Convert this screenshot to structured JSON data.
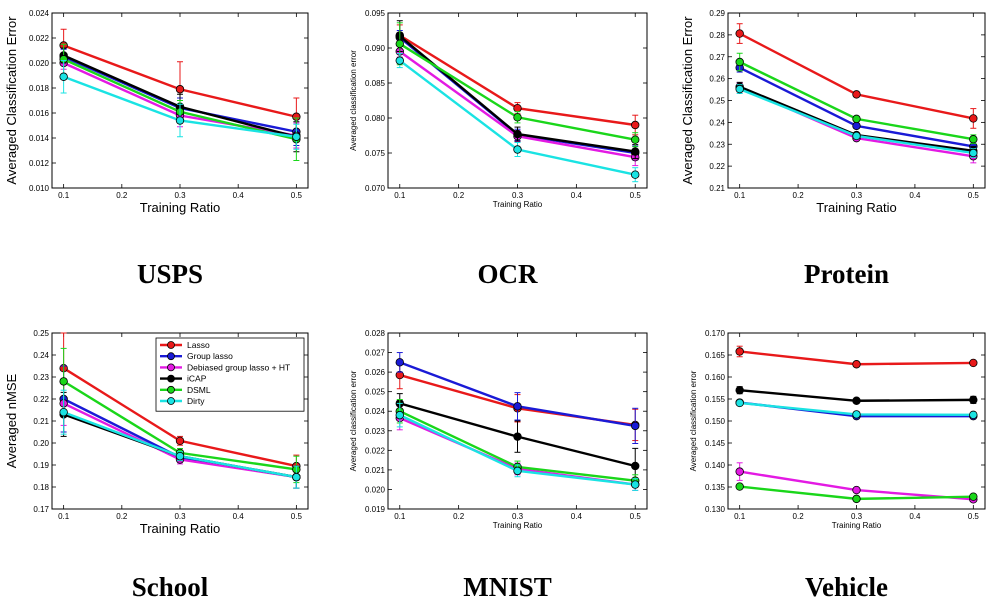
{
  "legend": {
    "entries": [
      {
        "label": "Lasso",
        "color": "#e8191a"
      },
      {
        "label": "Group lasso",
        "color": "#1a1ad6"
      },
      {
        "label": "Debiased group lasso + HT",
        "color": "#e31ae3"
      },
      {
        "label": "iCAP",
        "color": "#000000"
      },
      {
        "label": "DSML",
        "color": "#1ad61a"
      },
      {
        "label": "Dirty",
        "color": "#1ae3e3"
      }
    ]
  },
  "chart_data": [
    {
      "type": "line",
      "title": "USPS",
      "xlabel": "Training Ratio",
      "ylabel": "Averaged Classification Error",
      "x": [
        0.1,
        0.3,
        0.5
      ],
      "xlim": [
        0.08,
        0.52
      ],
      "ylim": [
        0.01,
        0.024
      ],
      "xticks": [
        "0.1",
        "0.2",
        "0.3",
        "0.4",
        "0.5"
      ],
      "yticks": [
        "0.010",
        "0.012",
        "0.014",
        "0.016",
        "0.018",
        "0.020",
        "0.022",
        "0.024"
      ],
      "grid": false,
      "series": [
        {
          "name": "Lasso",
          "values": [
            0.0214,
            0.0179,
            0.0157
          ],
          "err": [
            0.0013,
            0.0022,
            0.0015
          ]
        },
        {
          "name": "Group lasso",
          "values": [
            0.0205,
            0.0164,
            0.0145
          ],
          "err": [
            0.0006,
            0.0008,
            0.0011
          ]
        },
        {
          "name": "Debiased group lasso + HT",
          "values": [
            0.02,
            0.0158,
            0.0142
          ],
          "err": [
            0.0005,
            0.0009,
            0.001
          ]
        },
        {
          "name": "iCAP",
          "values": [
            0.0206,
            0.0165,
            0.0141
          ],
          "err": [
            0.0006,
            0.001,
            0.0012
          ]
        },
        {
          "name": "DSML",
          "values": [
            0.0203,
            0.0161,
            0.0139
          ],
          "err": [
            0.0012,
            0.0009,
            0.0017
          ]
        },
        {
          "name": "Dirty",
          "values": [
            0.0189,
            0.0154,
            0.0141
          ],
          "err": [
            0.0013,
            0.0013,
            0.001
          ]
        }
      ]
    },
    {
      "type": "line",
      "title": "OCR",
      "xlabel": "Training Ratio",
      "ylabel": "Averaged classification error",
      "x": [
        0.1,
        0.3,
        0.5
      ],
      "xlim": [
        0.08,
        0.52
      ],
      "ylim": [
        0.07,
        0.095
      ],
      "xticks": [
        "0.1",
        "0.2",
        "0.3",
        "0.4",
        "0.5"
      ],
      "yticks": [
        "0.070",
        "0.075",
        "0.080",
        "0.085",
        "0.090",
        "0.095"
      ],
      "grid": false,
      "series": [
        {
          "name": "Lasso",
          "values": [
            0.0918,
            0.0814,
            0.079
          ],
          "err": [
            0.0015,
            0.0008,
            0.0014
          ]
        },
        {
          "name": "Group lasso",
          "values": [
            0.0915,
            0.0776,
            0.075
          ],
          "err": [
            0.001,
            0.0008,
            0.001
          ]
        },
        {
          "name": "Debiased group lasso + HT",
          "values": [
            0.0895,
            0.0774,
            0.0744
          ],
          "err": [
            0.0008,
            0.0008,
            0.0012
          ]
        },
        {
          "name": "iCAP",
          "values": [
            0.0917,
            0.0777,
            0.0752
          ],
          "err": [
            0.0022,
            0.001,
            0.001
          ]
        },
        {
          "name": "DSML",
          "values": [
            0.0906,
            0.0801,
            0.0769
          ],
          "err": [
            0.003,
            0.0008,
            0.001
          ]
        },
        {
          "name": "Dirty",
          "values": [
            0.0882,
            0.0755,
            0.0719
          ],
          "err": [
            0.001,
            0.001,
            0.001
          ]
        }
      ]
    },
    {
      "type": "line",
      "title": "Protein",
      "xlabel": "Training Ratio",
      "ylabel": "Averaged Classification Error",
      "x": [
        0.1,
        0.3,
        0.5
      ],
      "xlim": [
        0.08,
        0.52
      ],
      "ylim": [
        0.21,
        0.29
      ],
      "xticks": [
        "0.1",
        "0.2",
        "0.3",
        "0.4",
        "0.5"
      ],
      "yticks": [
        "0.21",
        "0.22",
        "0.23",
        "0.24",
        "0.25",
        "0.26",
        "0.27",
        "0.28",
        "0.29"
      ],
      "grid": false,
      "series": [
        {
          "name": "Lasso",
          "values": [
            0.2806,
            0.2528,
            0.2418
          ],
          "err": [
            0.0045,
            0.001,
            0.0045
          ]
        },
        {
          "name": "Group lasso",
          "values": [
            0.265,
            0.2384,
            0.229
          ],
          "err": [
            0.002,
            0.001,
            0.002
          ]
        },
        {
          "name": "Debiased group lasso + HT",
          "values": [
            0.256,
            0.2328,
            0.2245
          ],
          "err": [
            0.002,
            0.001,
            0.003
          ]
        },
        {
          "name": "iCAP",
          "values": [
            0.2563,
            0.2342,
            0.227
          ],
          "err": [
            0.002,
            0.001,
            0.002
          ]
        },
        {
          "name": "DSML",
          "values": [
            0.2676,
            0.2416,
            0.2323
          ],
          "err": [
            0.004,
            0.001,
            0.002
          ]
        },
        {
          "name": "Dirty",
          "values": [
            0.2552,
            0.2338,
            0.226
          ],
          "err": [
            0.002,
            0.001,
            0.002
          ]
        }
      ]
    },
    {
      "type": "line",
      "title": "School",
      "xlabel": "Training Ratio",
      "ylabel": "Averaged nMSE",
      "x": [
        0.1,
        0.3,
        0.5
      ],
      "xlim": [
        0.08,
        0.52
      ],
      "ylim": [
        0.17,
        0.25
      ],
      "xticks": [
        "0.1",
        "0.2",
        "0.3",
        "0.4",
        "0.5"
      ],
      "yticks": [
        "0.17",
        "0.18",
        "0.19",
        "0.20",
        "0.21",
        "0.22",
        "0.23",
        "0.24",
        "0.25"
      ],
      "grid": false,
      "legend": "top-right",
      "series": [
        {
          "name": "Lasso",
          "values": [
            0.234,
            0.201,
            0.1895
          ],
          "err": [
            0.016,
            0.002,
            0.005
          ]
        },
        {
          "name": "Group lasso",
          "values": [
            0.22,
            0.1935,
            0.1845
          ],
          "err": [
            0.015,
            0.002,
            0.005
          ]
        },
        {
          "name": "Debiased group lasso + HT",
          "values": [
            0.218,
            0.1925,
            0.1845
          ],
          "err": [
            0.01,
            0.002,
            0.005
          ]
        },
        {
          "name": "iCAP",
          "values": [
            0.213,
            0.194,
            0.1845
          ],
          "err": [
            0.01,
            0.002,
            0.005
          ]
        },
        {
          "name": "DSML",
          "values": [
            0.228,
            0.1955,
            0.188
          ],
          "err": [
            0.015,
            0.002,
            0.006
          ]
        },
        {
          "name": "Dirty",
          "values": [
            0.214,
            0.194,
            0.1845
          ],
          "err": [
            0.01,
            0.002,
            0.005
          ]
        }
      ]
    },
    {
      "type": "line",
      "title": "MNIST",
      "xlabel": "Training Ratio",
      "ylabel": "Averaged classification error",
      "x": [
        0.1,
        0.3,
        0.5
      ],
      "xlim": [
        0.08,
        0.52
      ],
      "ylim": [
        0.019,
        0.028
      ],
      "xticks": [
        "0.1",
        "0.2",
        "0.3",
        "0.4",
        "0.5"
      ],
      "yticks": [
        "0.019",
        "0.020",
        "0.021",
        "0.022",
        "0.023",
        "0.024",
        "0.025",
        "0.026",
        "0.027",
        "0.028"
      ],
      "grid": false,
      "series": [
        {
          "name": "Lasso",
          "values": [
            0.02585,
            0.02415,
            0.0233
          ],
          "err": [
            0.0007,
            0.0007,
            0.0008
          ]
        },
        {
          "name": "Group lasso",
          "values": [
            0.0265,
            0.02425,
            0.02325
          ],
          "err": [
            0.0005,
            0.0007,
            0.0009
          ]
        },
        {
          "name": "Debiased group lasso + HT",
          "values": [
            0.02365,
            0.02105,
            0.02025
          ],
          "err": [
            0.0006,
            0.0003,
            0.0003
          ]
        },
        {
          "name": "iCAP",
          "values": [
            0.0244,
            0.0227,
            0.0212
          ],
          "err": [
            0.0005,
            0.0008,
            0.0009
          ]
        },
        {
          "name": "DSML",
          "values": [
            0.024,
            0.02115,
            0.02045
          ],
          "err": [
            0.0006,
            0.0003,
            0.0003
          ]
        },
        {
          "name": "Dirty",
          "values": [
            0.0238,
            0.02095,
            0.02025
          ],
          "err": [
            0.0006,
            0.0003,
            0.0003
          ]
        }
      ]
    },
    {
      "type": "line",
      "title": "Vehicle",
      "xlabel": "Training Ratio",
      "ylabel": "Averaged classification error",
      "x": [
        0.1,
        0.3,
        0.5
      ],
      "xlim": [
        0.08,
        0.52
      ],
      "ylim": [
        0.13,
        0.17
      ],
      "xticks": [
        "0.1",
        "0.2",
        "0.3",
        "0.4",
        "0.5"
      ],
      "yticks": [
        "0.130",
        "0.135",
        "0.140",
        "0.145",
        "0.150",
        "0.155",
        "0.160",
        "0.165",
        "0.170"
      ],
      "grid": false,
      "series": [
        {
          "name": "Lasso",
          "values": [
            0.1658,
            0.1629,
            0.1632
          ],
          "err": [
            0.0012,
            0.0004,
            0.0004
          ]
        },
        {
          "name": "Group lasso",
          "values": [
            0.1542,
            0.1511,
            0.1511
          ],
          "err": [
            0.0005,
            0.0004,
            0.0004
          ]
        },
        {
          "name": "Debiased group lasso + HT",
          "values": [
            0.1385,
            0.1343,
            0.1322
          ],
          "err": [
            0.002,
            0.0004,
            0.0004
          ]
        },
        {
          "name": "iCAP",
          "values": [
            0.157,
            0.1546,
            0.1548
          ],
          "err": [
            0.0008,
            0.0004,
            0.0008
          ]
        },
        {
          "name": "DSML",
          "values": [
            0.1351,
            0.1323,
            0.1328
          ],
          "err": [
            0.0004,
            0.0004,
            0.0004
          ]
        },
        {
          "name": "Dirty",
          "values": [
            0.1541,
            0.1515,
            0.1514
          ],
          "err": [
            0.0004,
            0.0004,
            0.0004
          ]
        }
      ]
    }
  ]
}
